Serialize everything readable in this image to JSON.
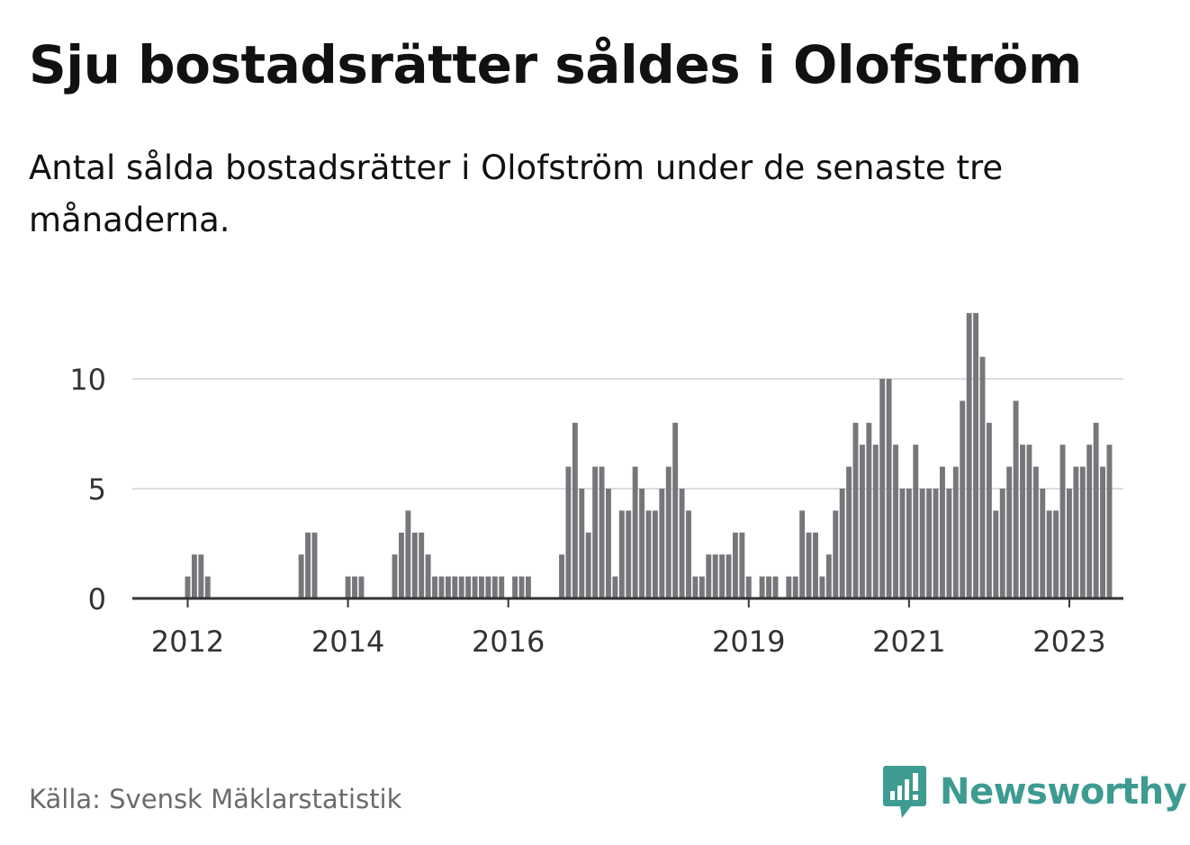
{
  "title": "Sju bostadsrätter såldes i Olofström",
  "subtitle": "Antal sålda bostadsrätter i Olofström under de senaste tre månaderna.",
  "source": "Källa: Svensk Mäklarstatistik",
  "brand": {
    "name": "Newsworthy",
    "icon": "newsworthy-logo-icon",
    "color": "#3d9b91"
  },
  "colors": {
    "bar": "#77767b",
    "highlight": "#1a9b8f",
    "grid": "#dddddd",
    "axis": "#333333"
  },
  "chart_data": {
    "type": "bar",
    "title": "Sju bostadsrätter såldes i Olofström",
    "subtitle": "Antal sålda bostadsrätter i Olofström under de senaste tre månaderna.",
    "xlabel": "",
    "ylabel": "",
    "ylim": [
      0,
      13
    ],
    "yticks": [
      0,
      5,
      10
    ],
    "grid": true,
    "x_start": "2011-05",
    "interval": "month",
    "xticks": [
      {
        "label": "2012",
        "date": "2012-01"
      },
      {
        "label": "2014",
        "date": "2014-01"
      },
      {
        "label": "2016",
        "date": "2016-01"
      },
      {
        "label": "2019",
        "date": "2019-01"
      },
      {
        "label": "2021",
        "date": "2021-01"
      },
      {
        "label": "2023",
        "date": "2023-01"
      }
    ],
    "values": [
      0,
      0,
      0,
      0,
      0,
      0,
      0,
      0,
      1,
      2,
      2,
      1,
      0,
      0,
      0,
      0,
      0,
      0,
      0,
      0,
      0,
      0,
      0,
      0,
      0,
      2,
      3,
      3,
      0,
      0,
      0,
      0,
      1,
      1,
      1,
      0,
      0,
      0,
      0,
      2,
      3,
      4,
      3,
      3,
      2,
      1,
      1,
      1,
      1,
      1,
      1,
      1,
      1,
      1,
      1,
      1,
      0,
      1,
      1,
      1,
      0,
      0,
      0,
      0,
      2,
      6,
      8,
      5,
      3,
      6,
      6,
      5,
      1,
      4,
      4,
      6,
      5,
      4,
      4,
      5,
      6,
      8,
      5,
      4,
      1,
      1,
      2,
      2,
      2,
      2,
      3,
      3,
      1,
      0,
      1,
      1,
      1,
      0,
      1,
      1,
      4,
      3,
      3,
      1,
      2,
      4,
      5,
      6,
      8,
      7,
      8,
      7,
      10,
      10,
      7,
      5,
      5,
      7,
      5,
      5,
      5,
      6,
      5,
      6,
      9,
      13,
      13,
      11,
      8,
      4,
      5,
      6,
      9,
      7,
      7,
      6,
      5,
      4,
      4,
      7,
      5,
      6,
      6,
      7,
      8,
      6,
      7
    ],
    "highlight_index": 151,
    "highlight_label": "7"
  }
}
